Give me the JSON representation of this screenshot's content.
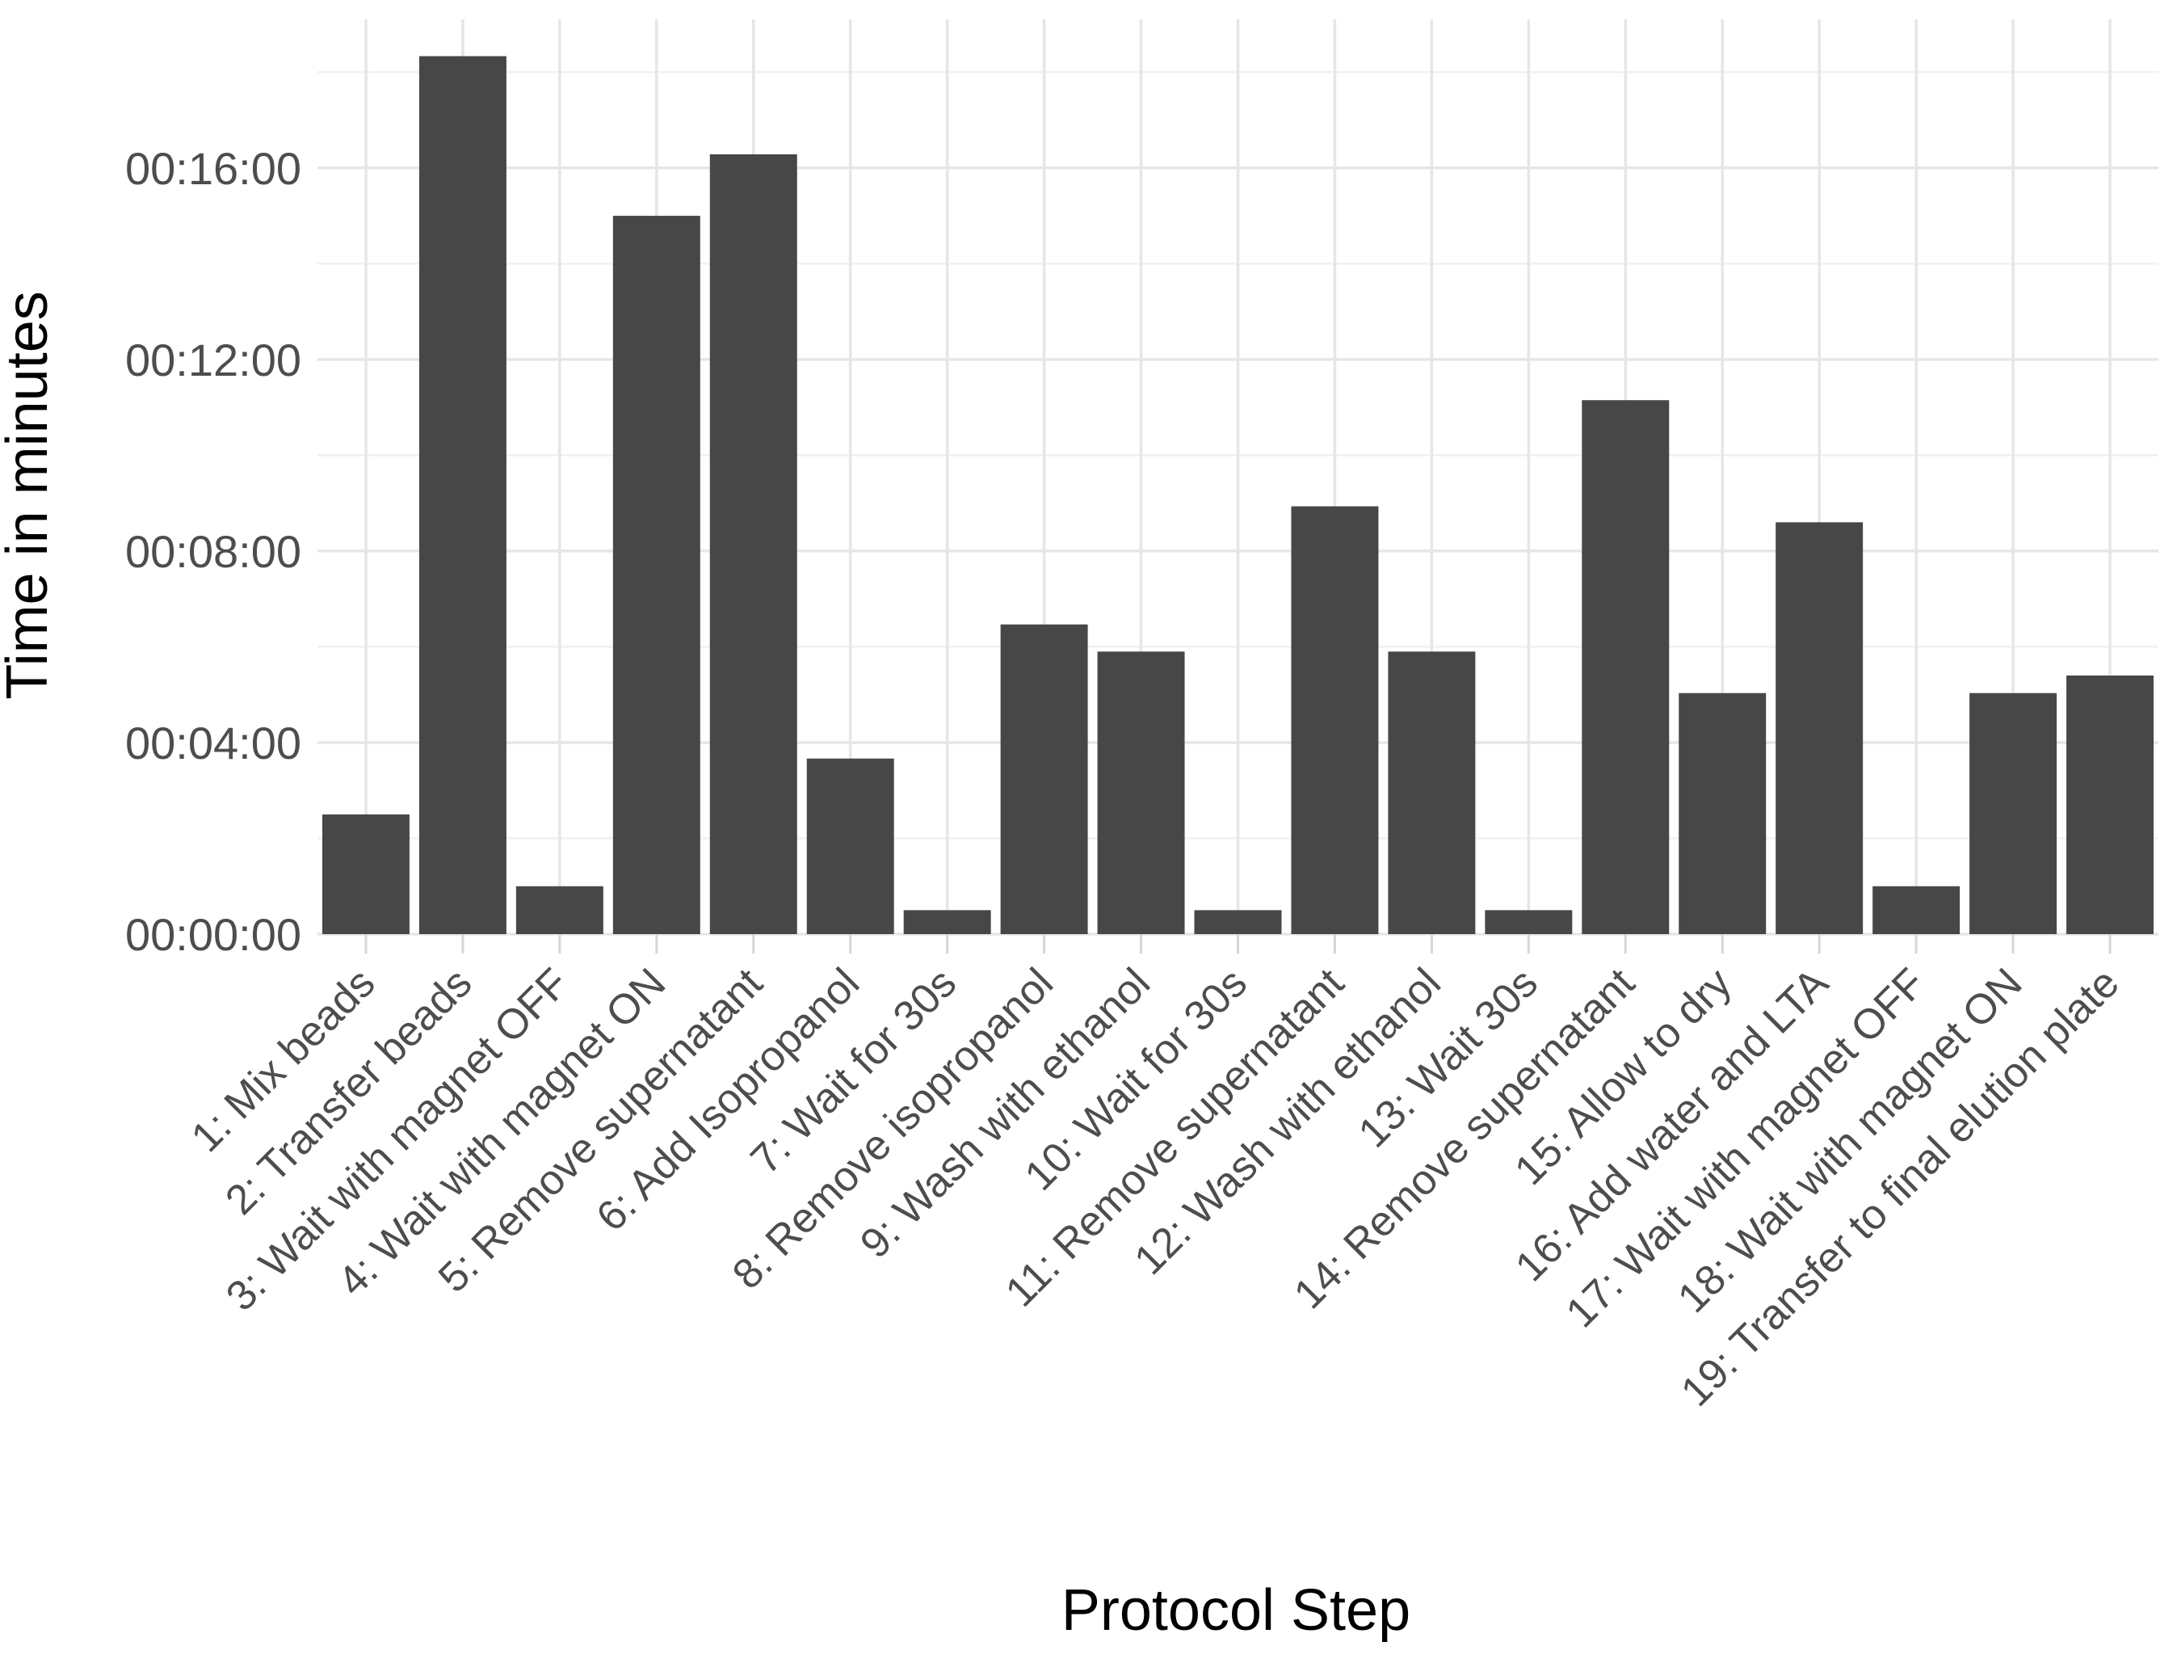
{
  "chart_data": {
    "type": "bar",
    "xlabel": "Protocol Step",
    "ylabel": "Time in minutes",
    "categories": [
      "1: Mix beads",
      "2: Transfer beads",
      "3: Wait with magnet OFF",
      "4: Wait with magnet ON",
      "5: Remove supernatant",
      "6: Add Isopropanol",
      "7: Wait for 30s",
      "8: Remove isopropanol",
      "9: Wash with ethanol",
      "10: Wait for 30s",
      "11: Remove supernatant",
      "12: Wash with ethanol",
      "13: Wait 30s",
      "14: Remove supernatant",
      "15: Allow to dry",
      "16: Add water and LTA",
      "17: Wait with magnet OFF",
      "18: Wait with magnet ON",
      "19: Transfer to final elution plate"
    ],
    "values": [
      150,
      1100,
      60,
      900,
      977,
      220,
      30,
      388,
      354,
      30,
      536,
      354,
      30,
      669,
      302,
      516,
      60,
      302,
      324
    ],
    "value_unit": "seconds",
    "ylim": [
      0,
      1140
    ],
    "yticks": [
      {
        "value": 0,
        "label": "00:00:00"
      },
      {
        "value": 240,
        "label": "00:04:00"
      },
      {
        "value": 480,
        "label": "00:08:00"
      },
      {
        "value": 720,
        "label": "00:12:00"
      },
      {
        "value": 960,
        "label": "00:16:00"
      }
    ],
    "grid": true,
    "legend": "none",
    "bar_color": "#474747",
    "grid_color": "#e6e6e6"
  }
}
